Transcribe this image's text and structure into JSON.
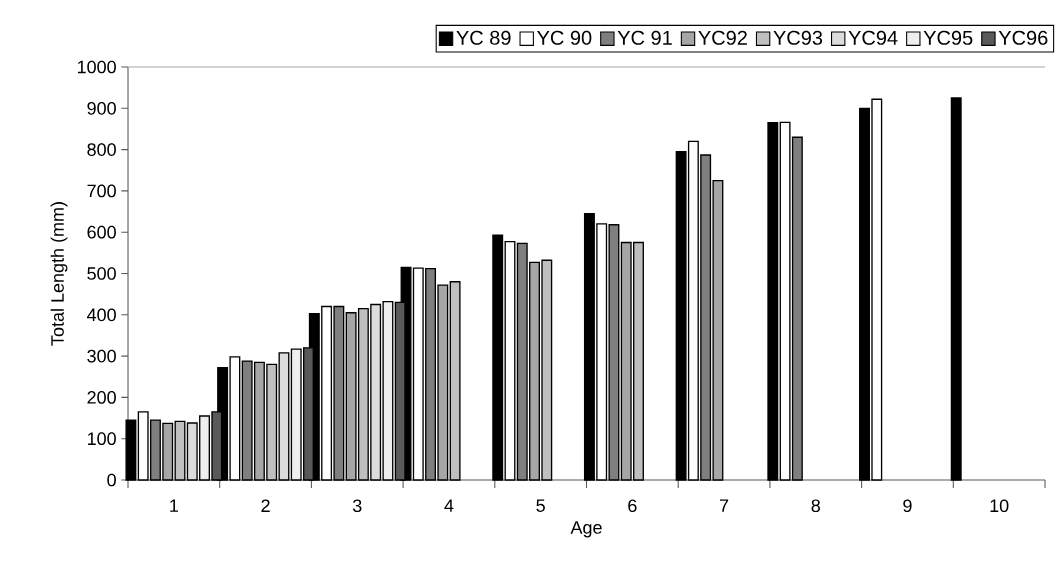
{
  "chart_data": {
    "type": "bar",
    "xlabel": "Age",
    "ylabel": "Total Length (mm)",
    "categories": [
      "1",
      "2",
      "3",
      "4",
      "5",
      "6",
      "7",
      "8",
      "9",
      "10"
    ],
    "series": [
      {
        "name": "YC 89",
        "color": "#000000",
        "values": [
          145,
          272,
          403,
          515,
          593,
          645,
          795,
          865,
          900,
          925
        ]
      },
      {
        "name": "YC 90",
        "color": "#ffffff",
        "values": [
          165,
          298,
          420,
          513,
          577,
          620,
          820,
          866,
          922,
          null
        ]
      },
      {
        "name": "YC 91",
        "color": "#7f7f7f",
        "values": [
          145,
          288,
          420,
          512,
          573,
          618,
          787,
          830,
          null,
          null
        ]
      },
      {
        "name": "YC92",
        "color": "#a6a6a6",
        "values": [
          137,
          285,
          405,
          472,
          527,
          575,
          725,
          null,
          null,
          null
        ]
      },
      {
        "name": "YC93",
        "color": "#bfbfbf",
        "values": [
          142,
          280,
          415,
          480,
          532,
          575,
          null,
          null,
          null,
          null
        ]
      },
      {
        "name": "YC94",
        "color": "#dcdcdc",
        "values": [
          138,
          308,
          425,
          null,
          null,
          null,
          null,
          null,
          null,
          null
        ]
      },
      {
        "name": "YC95",
        "color": "#eeeeee",
        "values": [
          155,
          317,
          432,
          null,
          null,
          null,
          null,
          null,
          null,
          null
        ]
      },
      {
        "name": "YC96",
        "color": "#595959",
        "values": [
          165,
          320,
          430,
          null,
          null,
          null,
          null,
          null,
          null,
          null
        ]
      }
    ],
    "ylim": [
      0,
      1000
    ],
    "yticks": [
      0,
      100,
      200,
      300,
      400,
      500,
      600,
      700,
      800,
      900,
      1000
    ],
    "grid": false,
    "legend": "top right"
  }
}
